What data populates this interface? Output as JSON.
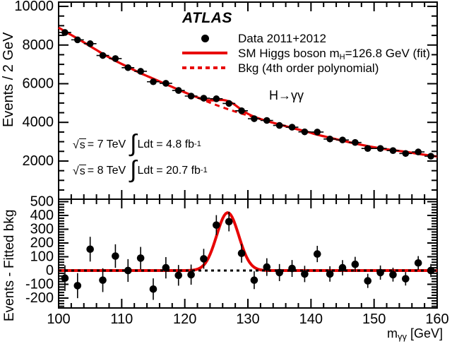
{
  "colors": {
    "accent_red": "#e80505",
    "marker_black": "#000000",
    "background": "#ffffff"
  },
  "annotations": {
    "experiment": "ATLAS",
    "process_label": "H→γγ",
    "lumi_line1": {
      "sqrt_sign": "√",
      "sqrt_arg": "s",
      "cond": "= 7 TeV",
      "integral": "∫",
      "body": "Ldt = 4.8 fb",
      "exponent": "-1"
    },
    "lumi_line2": {
      "sqrt_sign": "√",
      "sqrt_arg": "s",
      "cond": "= 8 TeV",
      "integral": "∫",
      "body": "Ldt = 20.7 fb",
      "exponent": "-1"
    }
  },
  "legend": {
    "data_label": "Data 2011+2012",
    "fit_label_prefix": "SM Higgs boson m",
    "fit_label_sub": "H",
    "fit_label_suffix": "=126.8 GeV (fit)",
    "bkg_label": "Bkg (4th order polynomial)"
  },
  "axes": {
    "top_ylabel": "Events / 2 GeV",
    "bottom_ylabel": "Events - Fitted bkg",
    "xlabel_prefix": "m",
    "xlabel_sub": "γγ",
    "xlabel_suffix": " [GeV]"
  },
  "chart_data": {
    "type": "line",
    "title": "ATLAS H→γγ invariant mass spectrum with SM Higgs boson fit and residuals",
    "x": {
      "label": "mγγ [GeV]",
      "range": [
        100,
        160
      ],
      "major_ticks": [
        100,
        110,
        120,
        130,
        140,
        150,
        160
      ],
      "minor_step": 2
    },
    "bin_centers": [
      101,
      103,
      105,
      107,
      109,
      111,
      113,
      115,
      117,
      119,
      121,
      123,
      125,
      127,
      129,
      131,
      133,
      135,
      137,
      139,
      141,
      143,
      145,
      147,
      149,
      151,
      153,
      155,
      157,
      159
    ],
    "top_panel": {
      "ylabel": "Events / 2 GeV",
      "ylim": [
        0,
        10220
      ],
      "major_ticks": [
        2000,
        4000,
        6000,
        8000,
        10000
      ],
      "minor_step": 500,
      "data_series_name": "Data 2011+2012",
      "data_values": [
        8650,
        8270,
        8070,
        7460,
        7300,
        6830,
        6640,
        6100,
        6020,
        5650,
        5360,
        5250,
        5220,
        4980,
        4600,
        4190,
        4100,
        3840,
        3750,
        3510,
        3500,
        3140,
        3090,
        2960,
        2650,
        2650,
        2540,
        2390,
        2470,
        2250
      ],
      "bkg_series_name": "Bkg (4th order polynomial)",
      "bkg_x": [
        100,
        101,
        103,
        105,
        107,
        109,
        111,
        113,
        115,
        117,
        119,
        121,
        123,
        125,
        127,
        129,
        131,
        133,
        135,
        137,
        139,
        141,
        143,
        145,
        147,
        149,
        151,
        153,
        155,
        157,
        159,
        160
      ],
      "bkg_values": [
        8900,
        8705,
        8335,
        7940,
        7545,
        7185,
        6860,
        6540,
        6260,
        5975,
        5690,
        5415,
        5150,
        4895,
        4665,
        4455,
        4270,
        4065,
        3890,
        3710,
        3550,
        3360,
        3205,
        3050,
        2905,
        2770,
        2655,
        2560,
        2480,
        2370,
        2280,
        2235
      ],
      "fit_series_name": "SM Higgs boson mH=126.8 GeV (fit)",
      "signal_gaussian": {
        "amplitude": 420,
        "mean": 126.8,
        "sigma": 1.75
      }
    },
    "bottom_panel": {
      "ylabel": "Events - Fitted bkg",
      "ylim": [
        -272,
        518
      ],
      "major_ticks": [
        -200,
        -100,
        0,
        100,
        200,
        300,
        400,
        500
      ],
      "minor_step": 20,
      "residuals": [
        -55,
        -110,
        155,
        -70,
        105,
        0,
        90,
        -135,
        20,
        -35,
        -30,
        85,
        330,
        355,
        125,
        -70,
        25,
        -15,
        15,
        -25,
        120,
        -25,
        20,
        45,
        -75,
        -15,
        -30,
        -60,
        55,
        0
      ],
      "signal_curve": {
        "amplitude": 420,
        "mean": 126.8,
        "sigma": 1.75
      },
      "zero_line_style": "dotted-black"
    },
    "error_model": "sqrt(N)",
    "grid": false,
    "legend_position": "top-center"
  }
}
